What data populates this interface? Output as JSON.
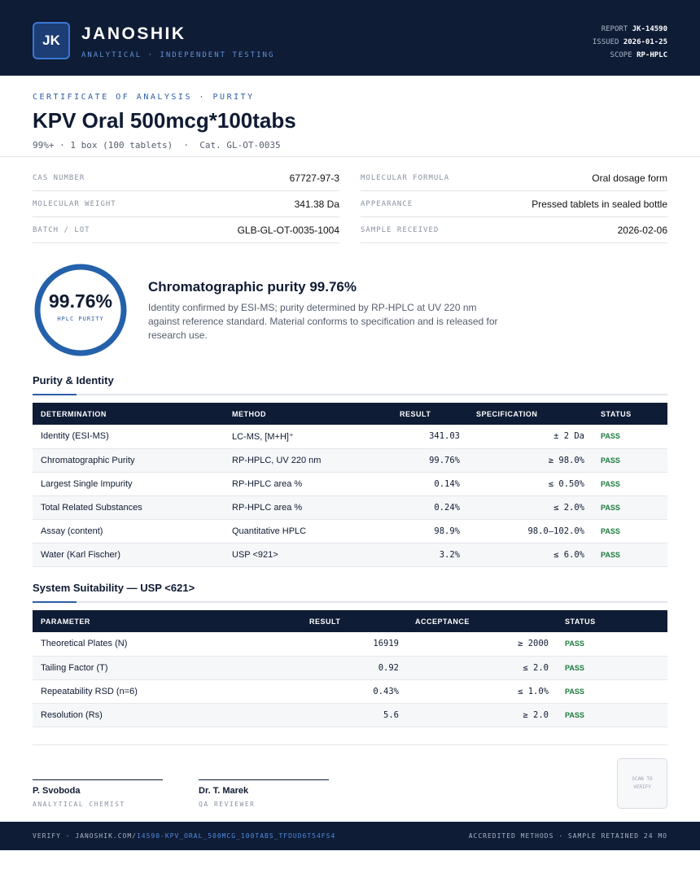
{
  "header": {
    "logo": "JK",
    "brand": "JANOSHIK",
    "tagline": "ANALYTICAL · INDEPENDENT TESTING",
    "meta": [
      {
        "label": "REPORT",
        "value": "JK-14590"
      },
      {
        "label": "ISSUED",
        "value": "2026-01-25"
      },
      {
        "label": "SCOPE",
        "value": "RP-HPLC"
      }
    ]
  },
  "title": {
    "eyebrow": "CERTIFICATE OF ANALYSIS · PURITY",
    "name": "KPV Oral 500mcg*100tabs",
    "subtitle": "99%+ · 1 box (100 tablets)  ·  Cat. GL-OT-0035"
  },
  "properties": {
    "left": [
      {
        "label": "CAS NUMBER",
        "value": "67727-97-3"
      },
      {
        "label": "MOLECULAR WEIGHT",
        "value": "341.38 Da"
      },
      {
        "label": "BATCH / LOT",
        "value": "GLB-GL-OT-0035-1004"
      }
    ],
    "right": [
      {
        "label": "MOLECULAR FORMULA",
        "value": "Oral dosage form"
      },
      {
        "label": "APPEARANCE",
        "value": "Pressed tablets in sealed bottle"
      },
      {
        "label": "SAMPLE RECEIVED",
        "value": "2026-02-06"
      }
    ]
  },
  "purity": {
    "value": "99.76%",
    "caption": "HPLC PURITY",
    "heading": "Chromatographic purity 99.76%",
    "text": "Identity confirmed by ESI-MS; purity determined by RP-HPLC at UV 220 nm against reference standard. Material conforms to specification and is released for research use."
  },
  "identity_table": {
    "title": "Purity & Identity",
    "columns": [
      "DETERMINATION",
      "METHOD",
      "RESULT",
      "SPECIFICATION",
      "STATUS"
    ],
    "rows": [
      [
        "Identity (ESI-MS)",
        "LC-MS, [M+H]⁺",
        "341.03",
        "± 2 Da",
        "PASS"
      ],
      [
        "Chromatographic Purity",
        "RP-HPLC, UV 220 nm",
        "99.76%",
        "≥ 98.0%",
        "PASS"
      ],
      [
        "Largest Single Impurity",
        "RP-HPLC area %",
        "0.14%",
        "≤ 0.50%",
        "PASS"
      ],
      [
        "Total Related Substances",
        "RP-HPLC area %",
        "0.24%",
        "≤ 2.0%",
        "PASS"
      ],
      [
        "Assay (content)",
        "Quantitative HPLC",
        "98.9%",
        "98.0–102.0%",
        "PASS"
      ],
      [
        "Water (Karl Fischer)",
        "USP <921>",
        "3.2%",
        "≤ 6.0%",
        "PASS"
      ]
    ]
  },
  "suitability_table": {
    "title": "System Suitability — USP <621>",
    "columns": [
      "PARAMETER",
      "RESULT",
      "ACCEPTANCE",
      "STATUS"
    ],
    "rows": [
      [
        "Theoretical Plates (N)",
        "16919",
        "≥ 2000",
        "PASS"
      ],
      [
        "Tailing Factor (T)",
        "0.92",
        "≤ 2.0",
        "PASS"
      ],
      [
        "Repeatability RSD (n=6)",
        "0.43%",
        "≤ 1.0%",
        "PASS"
      ],
      [
        "Resolution (Rs)",
        "5.6",
        "≥ 2.0",
        "PASS"
      ]
    ]
  },
  "signatures": [
    {
      "name": "P. Svoboda",
      "role": "ANALYTICAL CHEMIST"
    },
    {
      "name": "Dr. T. Marek",
      "role": "QA REVIEWER"
    }
  ],
  "qr": "SCAN TO VERIFY",
  "footer": {
    "verify": "VERIFY · JANOSHIK.COM/",
    "link": "14590-KPV_ORAL_500MCG_100TABS_TFDUD6T54FS4",
    "right": "ACCREDITED METHODS · SAMPLE RETAINED 24 MO"
  }
}
